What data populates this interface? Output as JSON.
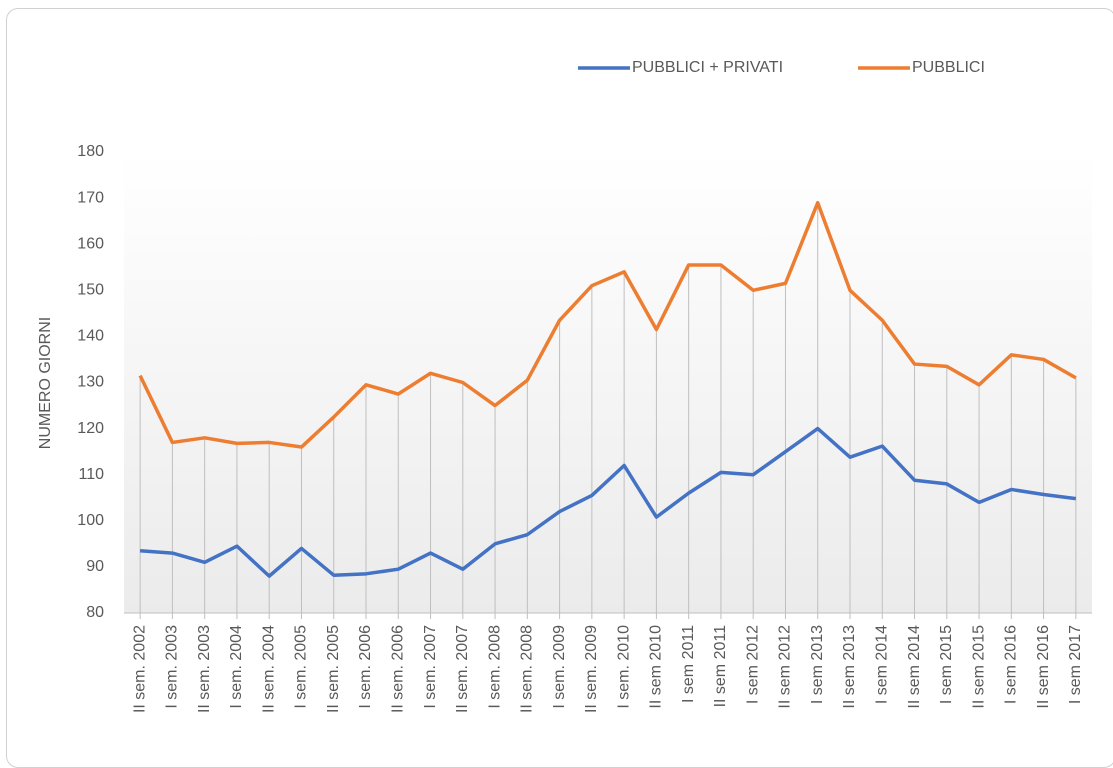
{
  "chart_data": {
    "type": "line",
    "y_label": "NUMERO GIORNI",
    "categories": [
      "II sem. 2002",
      "I sem. 2003",
      "II sem. 2003",
      "I sem. 2004",
      "II sem. 2004",
      "I sem. 2005",
      "II sem. 2005",
      "I sem. 2006",
      "II sem. 2006",
      "I sem. 2007",
      "II sem. 2007",
      "I sem. 2008",
      "II sem. 2008",
      "I sem. 2009",
      "II sem. 2009",
      "I sem. 2010",
      "II sem 2010",
      "I sem 2011",
      "II sem 2011",
      "I sem 2012",
      "II sem 2012",
      "I sem 2013",
      "II sem 2013",
      "I sem 2014",
      "II sem 2014",
      "I sem 2015",
      "II sem 2015",
      "I sem 2016",
      "II sem 2016",
      "I sem 2017"
    ],
    "series": [
      {
        "name": "PUBBLICI + PRIVATI",
        "color": "#4472c4",
        "values": [
          93.5,
          93,
          91,
          94.5,
          88,
          94,
          88.2,
          88.5,
          89.5,
          93,
          89.5,
          95,
          97,
          102,
          105.5,
          112,
          100.8,
          106,
          110.5,
          110,
          115,
          120,
          113.8,
          116.2,
          108.8,
          108,
          104,
          106.8,
          105.7,
          104.8
        ]
      },
      {
        "name": "PUBBLICI",
        "color": "#ed7d31",
        "values": [
          131.5,
          117,
          118,
          116.8,
          117,
          116,
          122.5,
          129.5,
          127.5,
          132,
          130,
          125,
          130.5,
          143.5,
          151,
          154,
          141.5,
          155.5,
          155.5,
          150,
          151.5,
          169,
          150,
          143.5,
          134,
          133.5,
          129.5,
          136,
          135,
          131
        ]
      }
    ],
    "ylim": [
      80,
      180
    ],
    "yticks": [
      80,
      90,
      100,
      110,
      120,
      130,
      140,
      150,
      160,
      170,
      180
    ],
    "grid": false,
    "drop_lines": true,
    "legend": "top"
  }
}
